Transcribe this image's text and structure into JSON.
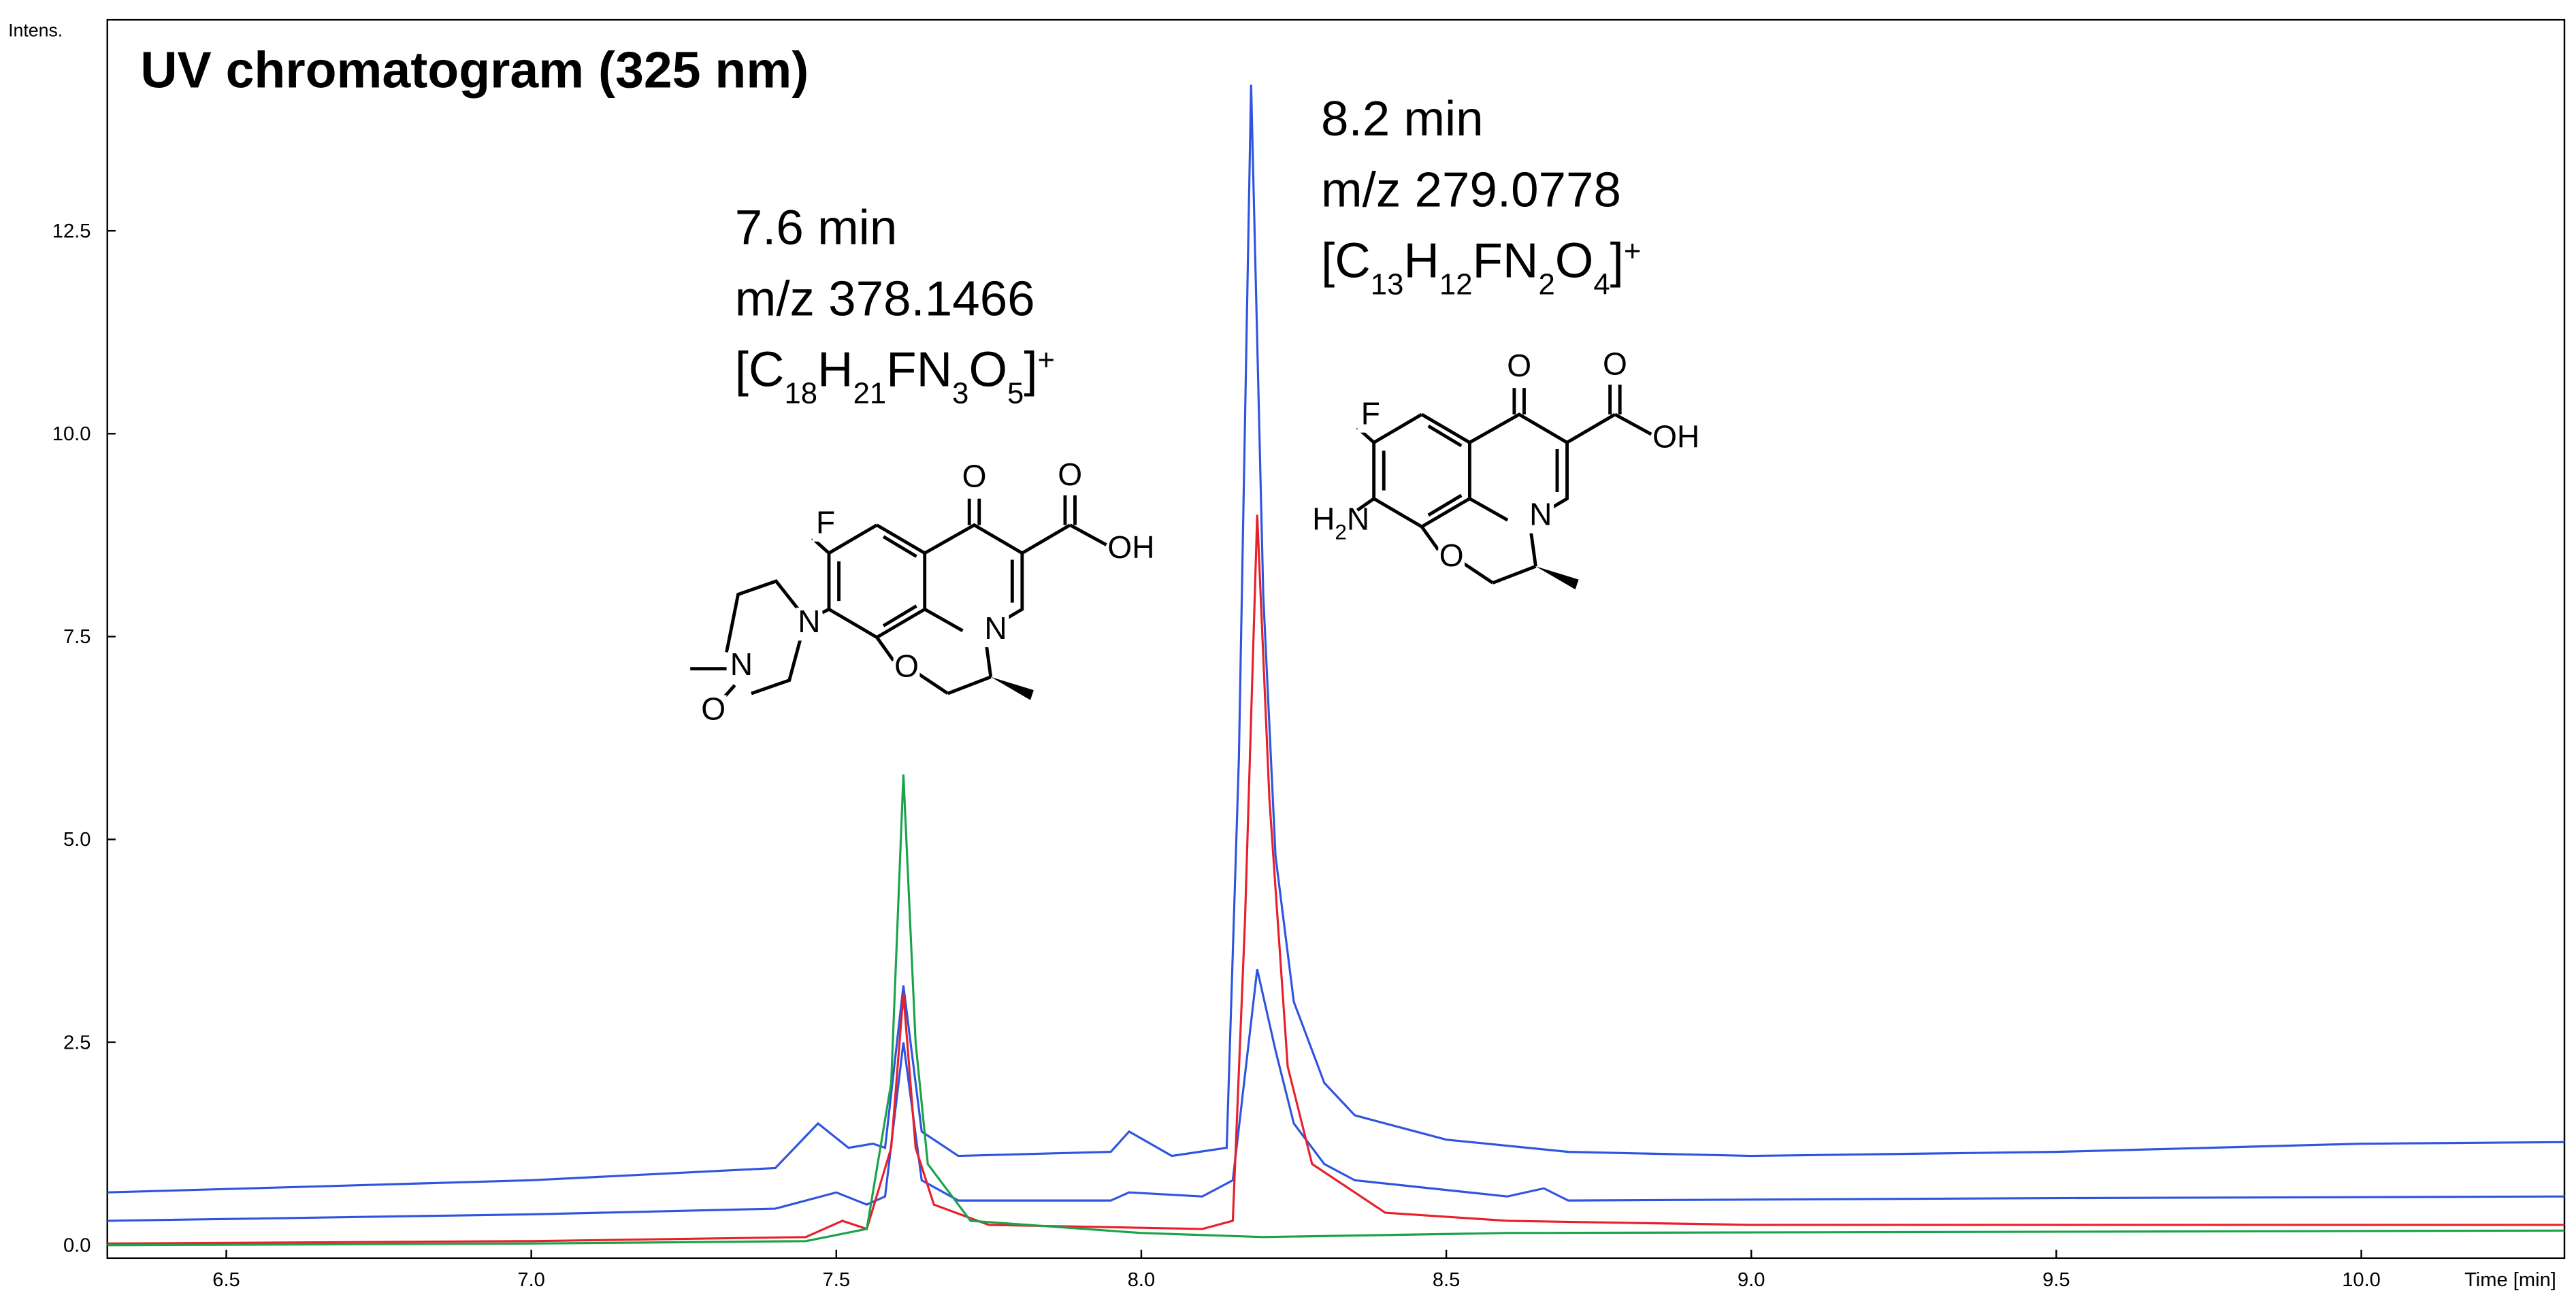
{
  "chart_data": {
    "type": "line",
    "title": "UV chromatogram (325 nm)",
    "y_label": "Intens.",
    "x_label": "Time [min]",
    "xlim": [
      6.305,
      10.333
    ],
    "ylim": [
      -0.16,
      15.1
    ],
    "xticks": [
      {
        "value": 6.5,
        "label": "6.5"
      },
      {
        "value": 7,
        "label": "7.0"
      },
      {
        "value": 7.5,
        "label": "7.5"
      },
      {
        "value": 8,
        "label": "8.0"
      },
      {
        "value": 8.5,
        "label": "8.5"
      },
      {
        "value": 9,
        "label": "9.0"
      },
      {
        "value": 9.5,
        "label": "9.5"
      },
      {
        "value": 10,
        "label": "10.0"
      }
    ],
    "yticks": [
      {
        "value": 0,
        "label": "0.0"
      },
      {
        "value": 2.5,
        "label": "2.5"
      },
      {
        "value": 5,
        "label": "5.0"
      },
      {
        "value": 7.5,
        "label": "7.5"
      },
      {
        "value": 10,
        "label": "10.0"
      },
      {
        "value": 12.5,
        "label": "12.5"
      }
    ],
    "series": [
      {
        "color": "#2f55e0",
        "x": [
          6.305,
          7.0,
          7.4,
          7.47,
          7.52,
          7.56,
          7.58,
          7.61,
          7.64,
          7.7,
          7.95,
          7.98,
          8.05,
          8.14,
          8.16,
          8.18,
          8.2,
          8.22,
          8.25,
          8.3,
          8.35,
          8.5,
          8.7,
          9.0,
          9.5,
          10.0,
          10.333
        ],
        "values": [
          0.65,
          0.8,
          0.95,
          1.5,
          1.2,
          1.25,
          1.2,
          3.2,
          1.4,
          1.1,
          1.15,
          1.4,
          1.1,
          1.2,
          6.0,
          14.3,
          8.0,
          4.8,
          3.0,
          2.0,
          1.6,
          1.3,
          1.15,
          1.1,
          1.15,
          1.25,
          1.27
        ]
      },
      {
        "color": "#2f55e0",
        "x": [
          6.305,
          7.0,
          7.4,
          7.5,
          7.55,
          7.58,
          7.61,
          7.64,
          7.7,
          7.95,
          7.98,
          8.1,
          8.15,
          8.19,
          8.22,
          8.25,
          8.3,
          8.35,
          8.6,
          8.66,
          8.7,
          9.5,
          10.333
        ],
        "values": [
          0.3,
          0.38,
          0.45,
          0.65,
          0.5,
          0.6,
          2.5,
          0.8,
          0.55,
          0.55,
          0.65,
          0.6,
          0.8,
          3.4,
          2.4,
          1.5,
          1.0,
          0.8,
          0.6,
          0.7,
          0.55,
          0.58,
          0.6
        ]
      },
      {
        "color": "#e8202a",
        "x": [
          6.305,
          7.0,
          7.45,
          7.51,
          7.55,
          7.59,
          7.61,
          7.63,
          7.66,
          7.75,
          8.1,
          8.15,
          8.17,
          8.19,
          8.21,
          8.24,
          8.28,
          8.4,
          8.6,
          9.0,
          10.333
        ],
        "values": [
          0.02,
          0.05,
          0.1,
          0.3,
          0.2,
          1.2,
          3.1,
          1.2,
          0.5,
          0.25,
          0.2,
          0.3,
          4.0,
          9.0,
          5.5,
          2.2,
          1.0,
          0.4,
          0.3,
          0.25,
          0.25
        ]
      },
      {
        "color": "#1aa34a",
        "x": [
          6.305,
          7.0,
          7.45,
          7.55,
          7.59,
          7.61,
          7.63,
          7.65,
          7.72,
          8.0,
          8.2,
          8.6,
          10.333
        ],
        "values": [
          0.0,
          0.02,
          0.05,
          0.2,
          2.0,
          5.8,
          2.5,
          1.0,
          0.3,
          0.15,
          0.1,
          0.15,
          0.18
        ]
      }
    ],
    "annotations": [
      {
        "lines": [
          "7.6 min",
          "m/z 378.1466"
        ],
        "formula": "[C18H21FN3O5]+",
        "atoms": [
          "F",
          "O",
          "O",
          "OH",
          "N",
          "O",
          "N",
          "N",
          "O"
        ]
      },
      {
        "lines": [
          "8.2 min",
          "m/z 279.0778"
        ],
        "formula": "[C13H12FN2O4]+",
        "atoms": [
          "F",
          "O",
          "O",
          "OH",
          "N",
          "O",
          "H2N"
        ]
      }
    ]
  }
}
